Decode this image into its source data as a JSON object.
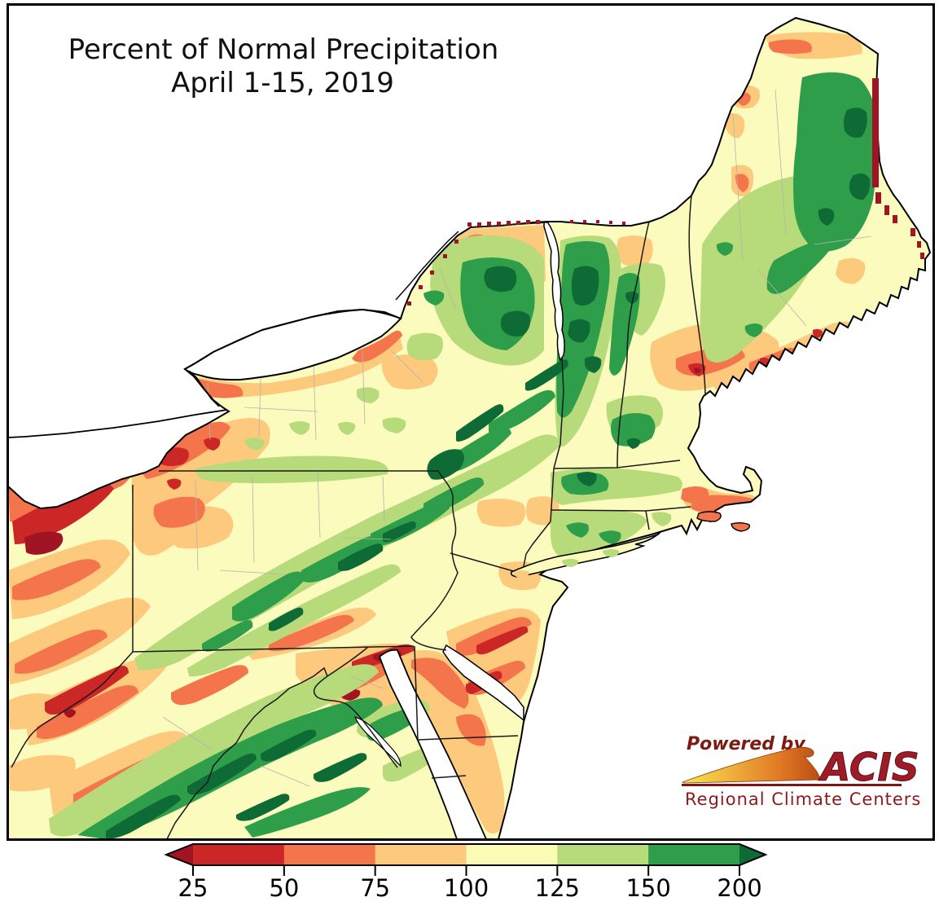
{
  "title": {
    "line1": "Percent of Normal Precipitation",
    "line2": "April 1-15, 2019"
  },
  "legend": {
    "tick_labels": [
      "25",
      "50",
      "75",
      "100",
      "125",
      "150",
      "200"
    ],
    "segment_colors": [
      "#cb2727",
      "#f4744b",
      "#fdc97d",
      "#fbfbb4",
      "#b7db7a",
      "#2e9e4b"
    ],
    "under_arrow_color": "#a01423",
    "over_arrow_color": "#0e6b35",
    "outline_color": "#000000"
  },
  "logo": {
    "powered_by": "Powered by",
    "name": "ACIS",
    "subtitle": "Regional Climate Centers"
  },
  "map": {
    "region": "Northeast United States",
    "water_color": "#ffffff",
    "class_colors": {
      "under_25": "#a01423",
      "25_50": "#cb2727",
      "50_75": "#f4744b",
      "75_100": "#fdc97d",
      "100_125": "#fbfbb4",
      "125_150": "#b7db7a",
      "150_200": "#2e9e4b",
      "over_200": "#0e6b35"
    }
  },
  "chart_data": {
    "type": "heatmap",
    "title": "Percent of Normal Precipitation",
    "subtitle": "April 1-15, 2019",
    "scale": "percent of normal precipitation",
    "legend_ticks": [
      25,
      50,
      75,
      100,
      125,
      150,
      200
    ],
    "legend_position": "bottom"
  }
}
